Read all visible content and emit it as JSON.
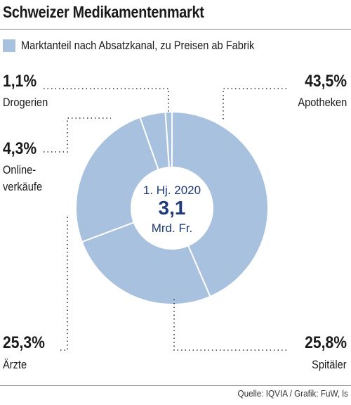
{
  "chart_data": {
    "type": "pie",
    "title": "Schweizer Medikamentenmarkt",
    "legend": "Marktanteil nach Absatzkanal, zu Preisen ab Fabrik",
    "center": {
      "line1": "1. Hj. 2020",
      "value": "3,1",
      "line3": "Mrd. Fr."
    },
    "series_color": "#a7c1de",
    "slices": [
      {
        "label": "Apotheken",
        "value": 43.5,
        "label_text": "43,5%"
      },
      {
        "label": "Spitäler",
        "value": 25.8,
        "label_text": "25,8%"
      },
      {
        "label": "Ärzte",
        "value": 25.3,
        "label_text": "25,3%"
      },
      {
        "label": "Onlineverkäufe",
        "value": 4.3,
        "label_text": "4,3%",
        "label_lines": [
          "Online-",
          "verkäufe"
        ]
      },
      {
        "label": "Drogerien",
        "value": 1.1,
        "label_text": "1,1%"
      }
    ],
    "source": "Quelle: IQVIA  / Grafik: FuW, ls"
  }
}
